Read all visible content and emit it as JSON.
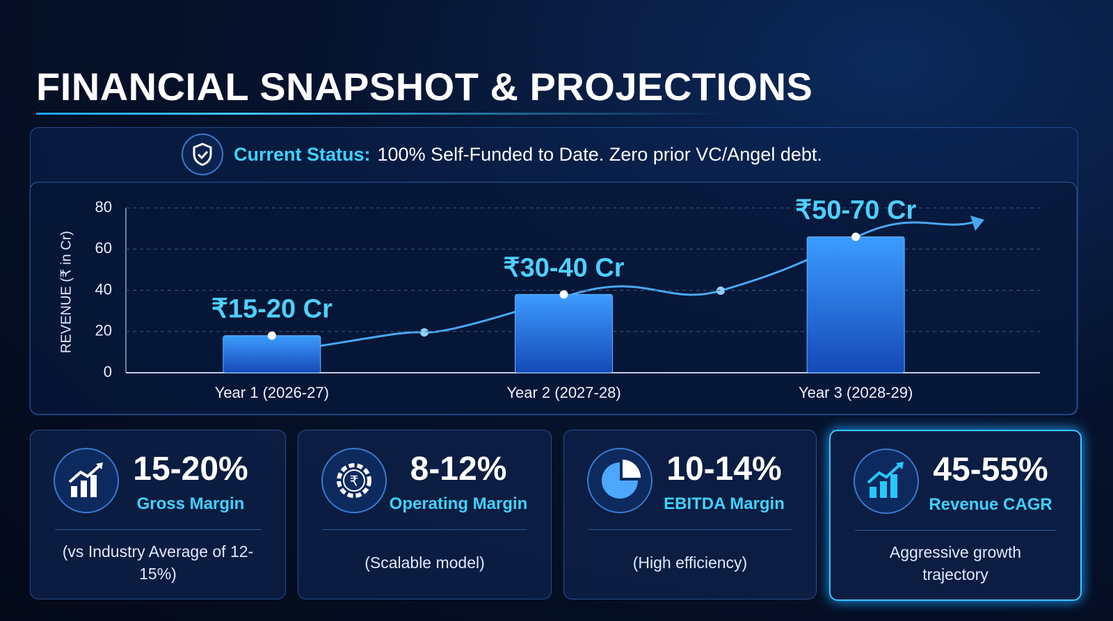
{
  "title": "FINANCIAL SNAPSHOT & PROJECTIONS",
  "status": {
    "label": "Current Status:",
    "text": "100% Self-Funded to Date. Zero prior VC/Angel debt."
  },
  "chart_data": {
    "type": "bar",
    "ylabel": "REVENUE (₹ in Cr)",
    "categories": [
      "Year 1 (2026-27)",
      "Year 2 (2027-28)",
      "Year 3 (2028-29)"
    ],
    "values": [
      18,
      38,
      66
    ],
    "value_labels": [
      "₹15-20 Cr",
      "₹30-40 Cr",
      "₹50-70 Cr"
    ],
    "color": "#1f6fe0",
    "ylim": [
      0,
      80
    ],
    "yticks": [
      0,
      20,
      40,
      60,
      80
    ],
    "grid": true
  },
  "cards": [
    {
      "value": "15-20%",
      "label": "Gross Margin",
      "note": "(vs Industry Average of 12-15%)"
    },
    {
      "value": "8-12%",
      "label": "Operating Margin",
      "note": "(Scalable model)"
    },
    {
      "value": "10-14%",
      "label": "EBITDA Margin",
      "note": "(High efficiency)"
    },
    {
      "value": "45-55%",
      "label": "Revenue CAGR",
      "note": "Aggressive growth trajectory"
    }
  ]
}
